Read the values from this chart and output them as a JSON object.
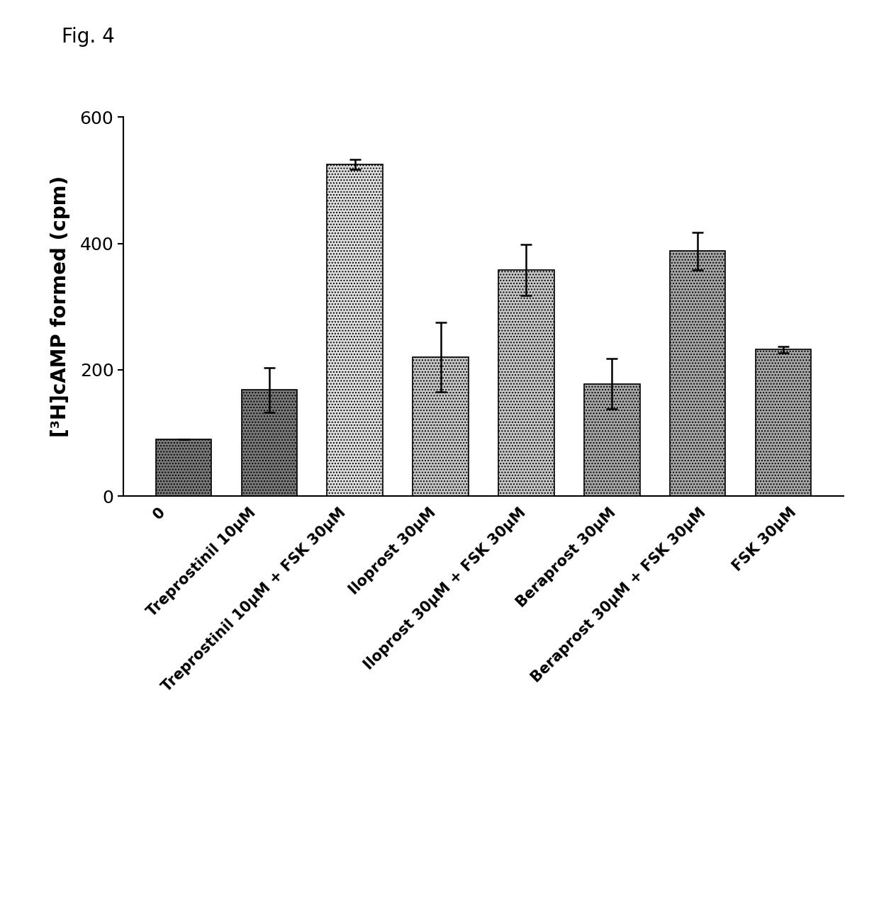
{
  "title": "Fig. 4",
  "ylabel": "[³H]cAMP formed (cpm)",
  "ylim": [
    0,
    600
  ],
  "yticks": [
    0,
    200,
    400,
    600
  ],
  "categories": [
    "0",
    "Treprostinil 10μM",
    "Treprostinil 10μM + FSK 30μM",
    "Iloprost 30μM",
    "Iloprost 30μM + FSK 30μM",
    "Beraprost 30μM",
    "Beraprost 30μM + FSK 30μM",
    "FSK 30μM"
  ],
  "values": [
    90,
    168,
    525,
    220,
    358,
    178,
    388,
    232
  ],
  "errors": [
    0,
    35,
    8,
    55,
    40,
    40,
    30,
    5
  ],
  "colors": [
    "#7a7a7a",
    "#7a7a7a",
    "#e0e0e0",
    "#c8c8c8",
    "#c8c8c8",
    "#a8a8a8",
    "#a8a8a8",
    "#a8a8a8"
  ],
  "hatches": [
    "....",
    "....",
    "....",
    "....",
    "....",
    "....",
    "....",
    "...."
  ],
  "bar_edgecolor": "#000000",
  "background_color": "#ffffff",
  "figsize": [
    12.4,
    12.73
  ],
  "dpi": 100
}
